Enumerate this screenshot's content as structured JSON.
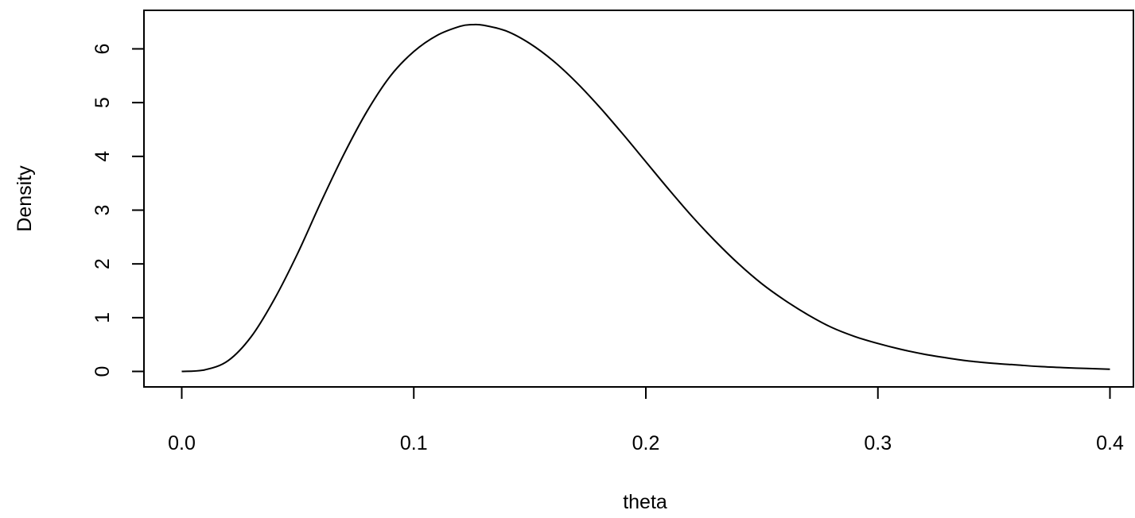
{
  "chart_data": {
    "type": "line",
    "title": "",
    "xlabel": "theta",
    "ylabel": "Density",
    "xlim": [
      -0.016,
      0.4
    ],
    "ylim": [
      -0.25,
      6.7
    ],
    "x_ticks": [
      0.0,
      0.1,
      0.2,
      0.3,
      0.4
    ],
    "x_tick_labels": [
      "0.0",
      "0.1",
      "0.2",
      "0.3",
      "0.4"
    ],
    "y_ticks": [
      0,
      1,
      2,
      3,
      4,
      5,
      6
    ],
    "y_tick_labels": [
      "0",
      "1",
      "2",
      "3",
      "4",
      "5",
      "6"
    ],
    "grid": false,
    "legend": "none",
    "line_color": "#000000",
    "series": [
      {
        "x": [
          0.0,
          0.01,
          0.02,
          0.03,
          0.04,
          0.05,
          0.06,
          0.07,
          0.08,
          0.09,
          0.1,
          0.11,
          0.12,
          0.125,
          0.13,
          0.14,
          0.15,
          0.16,
          0.17,
          0.18,
          0.19,
          0.2,
          0.21,
          0.22,
          0.23,
          0.24,
          0.25,
          0.26,
          0.27,
          0.28,
          0.29,
          0.3,
          0.31,
          0.32,
          0.33,
          0.34,
          0.35,
          0.36,
          0.37,
          0.38,
          0.39,
          0.4
        ],
        "y": [
          0.0,
          0.03,
          0.2,
          0.65,
          1.35,
          2.2,
          3.15,
          4.05,
          4.85,
          5.5,
          5.95,
          6.25,
          6.42,
          6.45,
          6.44,
          6.33,
          6.1,
          5.78,
          5.38,
          4.92,
          4.42,
          3.9,
          3.38,
          2.88,
          2.42,
          2.0,
          1.63,
          1.32,
          1.05,
          0.82,
          0.65,
          0.52,
          0.41,
          0.32,
          0.25,
          0.19,
          0.15,
          0.12,
          0.09,
          0.07,
          0.055,
          0.04
        ]
      }
    ]
  }
}
